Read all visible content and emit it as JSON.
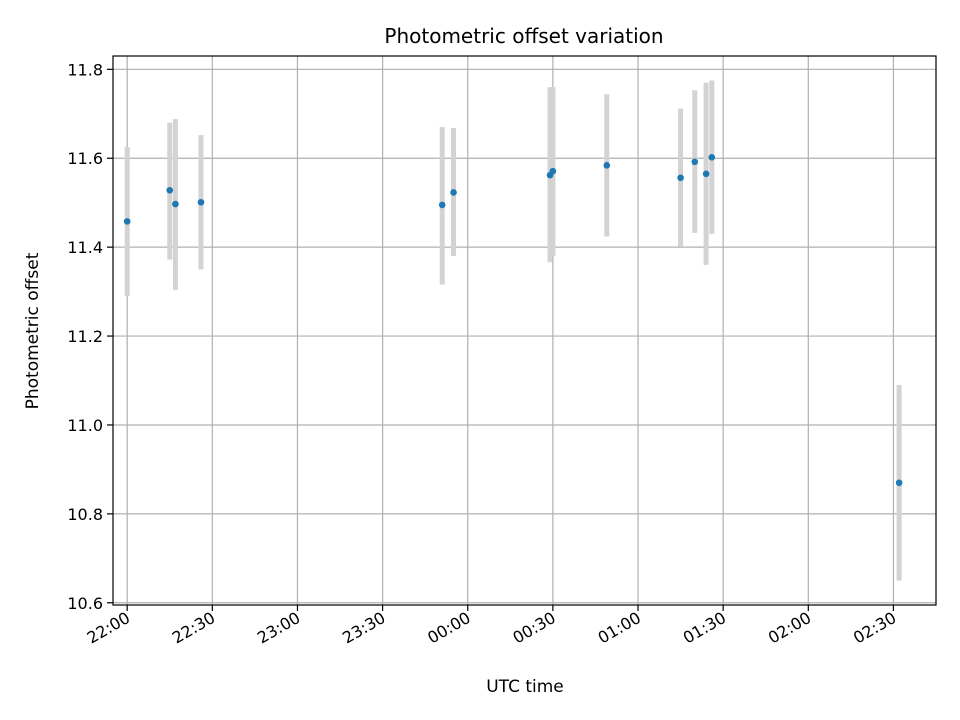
{
  "chart_data": {
    "type": "scatter",
    "title": "Photometric offset variation",
    "xlabel": "UTC time",
    "ylabel": "Photometric offset",
    "grid": true,
    "ylim": [
      10.595,
      11.83
    ],
    "xlim": [
      "21:55",
      "02:45"
    ],
    "x_ticks": [
      "22:00",
      "22:30",
      "23:00",
      "23:30",
      "00:00",
      "00:30",
      "01:00",
      "01:30",
      "02:00",
      "02:30"
    ],
    "y_ticks": [
      "10.6",
      "10.8",
      "11.0",
      "11.2",
      "11.4",
      "11.6",
      "11.8"
    ],
    "colors": {
      "points": "#1f77b4",
      "error_bars": "#d3d3d3",
      "grid": "#b0b0b0"
    },
    "points": [
      {
        "time": "22:00",
        "y": 11.458,
        "low": 11.29,
        "high": 11.625
      },
      {
        "time": "22:15",
        "y": 11.528,
        "low": 11.372,
        "high": 11.68
      },
      {
        "time": "22:17",
        "y": 11.497,
        "low": 11.304,
        "high": 11.688
      },
      {
        "time": "22:26",
        "y": 11.501,
        "low": 11.35,
        "high": 11.652
      },
      {
        "time": "23:51",
        "y": 11.495,
        "low": 11.316,
        "high": 11.67
      },
      {
        "time": "23:55",
        "y": 11.523,
        "low": 11.38,
        "high": 11.668
      },
      {
        "time": "00:29",
        "y": 11.562,
        "low": 11.366,
        "high": 11.76
      },
      {
        "time": "00:30",
        "y": 11.571,
        "low": 11.38,
        "high": 11.76
      },
      {
        "time": "00:49",
        "y": 11.584,
        "low": 11.424,
        "high": 11.744
      },
      {
        "time": "01:15",
        "y": 11.556,
        "low": 11.402,
        "high": 11.712
      },
      {
        "time": "01:20",
        "y": 11.592,
        "low": 11.432,
        "high": 11.753
      },
      {
        "time": "01:24",
        "y": 11.565,
        "low": 11.36,
        "high": 11.77
      },
      {
        "time": "01:26",
        "y": 11.602,
        "low": 11.43,
        "high": 11.775
      },
      {
        "time": "02:32",
        "y": 10.87,
        "low": 10.65,
        "high": 11.09
      }
    ]
  }
}
